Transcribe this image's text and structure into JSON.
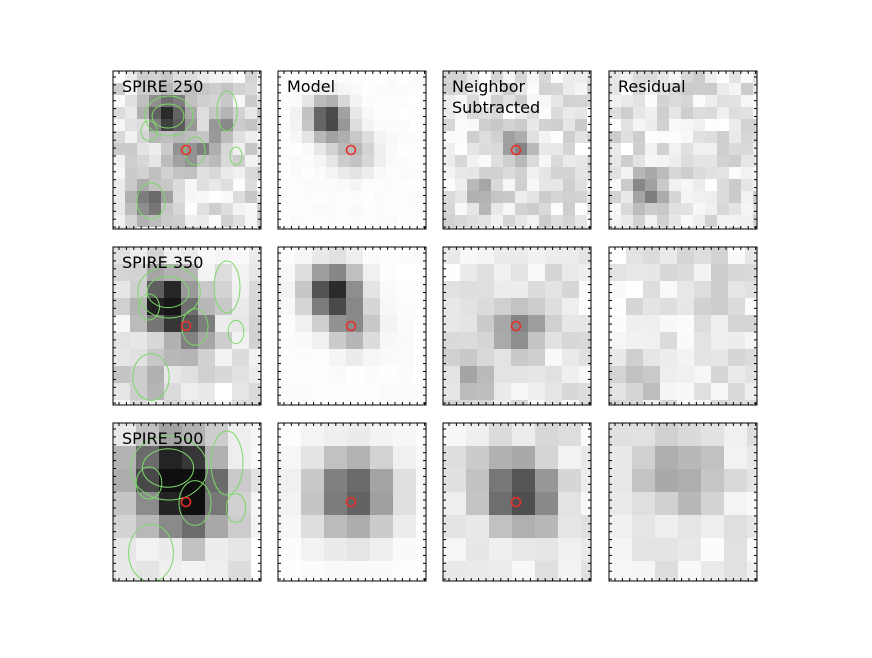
{
  "rows": [
    {
      "label": "SPIRE 250"
    },
    {
      "label": "SPIRE 350"
    },
    {
      "label": "SPIRE 500"
    }
  ],
  "columns": [
    {
      "label": [
        "Model"
      ]
    },
    {
      "label": [
        "Neighbor",
        "Subtracted"
      ]
    },
    {
      "label": [
        "Residual"
      ]
    }
  ]
}
